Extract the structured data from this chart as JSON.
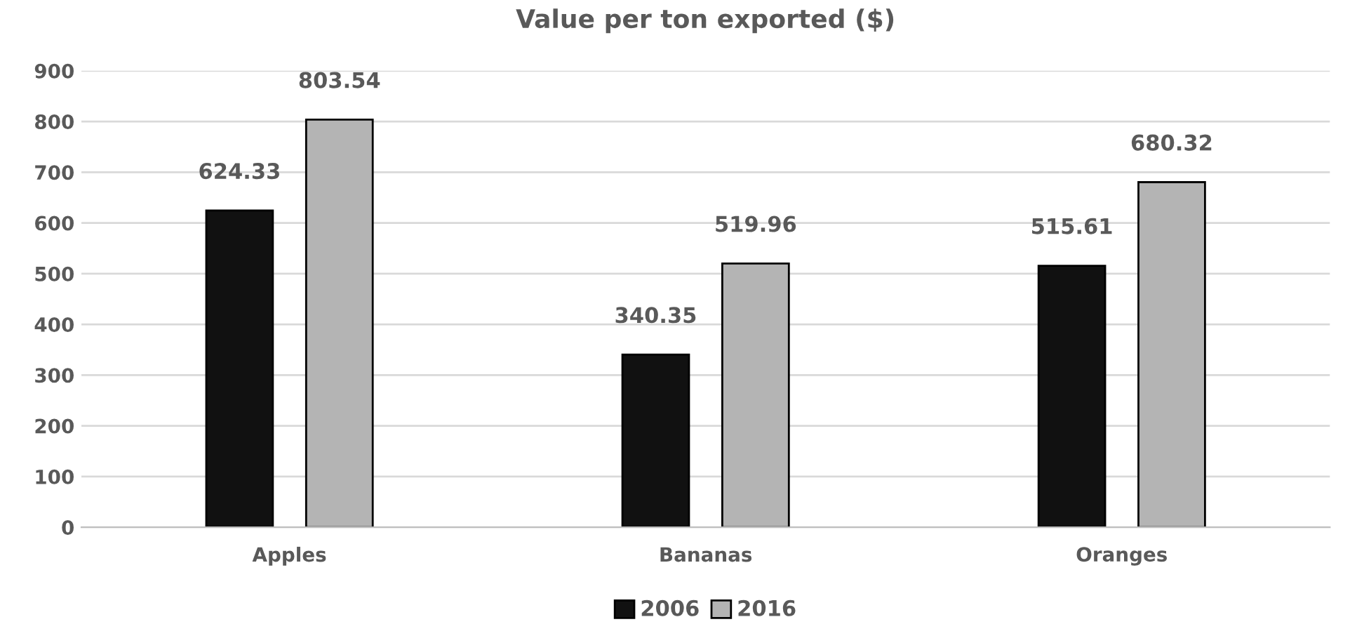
{
  "chart_data": {
    "type": "bar",
    "title": "Value per ton exported ($)",
    "categories": [
      "Apples",
      "Bananas",
      "Oranges"
    ],
    "series": [
      {
        "name": "2006",
        "color": "#111111",
        "values": [
          624.33,
          340.35,
          515.61
        ]
      },
      {
        "name": "2016",
        "color": "#b4b4b4",
        "values": [
          803.54,
          519.96,
          680.32
        ]
      }
    ],
    "ylim": [
      0,
      900
    ],
    "yticks": [
      0,
      100,
      200,
      300,
      400,
      500,
      600,
      700,
      800,
      900
    ],
    "grid": "y",
    "legend": "bottom",
    "data_labels": true
  }
}
